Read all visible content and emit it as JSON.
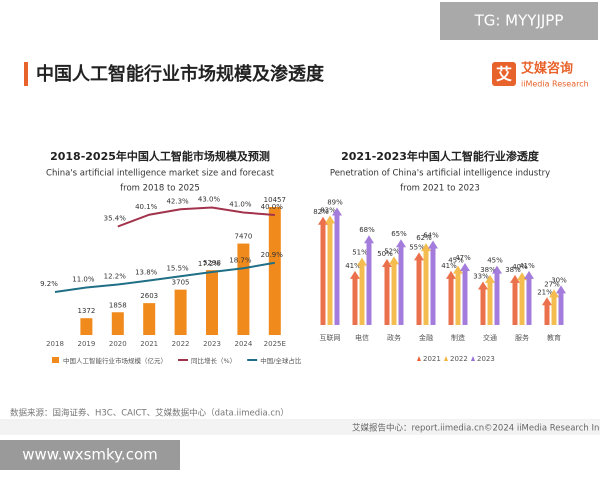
{
  "watermark_top": "TG: MYYJJPP",
  "header": {
    "title": "中国人工智能行业市场规模及渗透度",
    "logo_icon": "艾",
    "logo_name": "艾媒咨询",
    "logo_sub": "iiMedia Research"
  },
  "chart_data": [
    {
      "type": "bar_line",
      "title": "2018-2025年中国人工智能市场规模及预测",
      "subtitle": [
        "China's artificial intelligence market size and forecast",
        "from 2018 to 2025"
      ],
      "categories": [
        "2018",
        "2019",
        "2020",
        "2021",
        "2022",
        "2023",
        "2024",
        "2025E"
      ],
      "series": [
        {
          "name": "中国人工智能行业市场规模（亿元）",
          "type": "bar",
          "color": "#f08a1c",
          "values": [
            null,
            1372,
            1858,
            2603,
            3705,
            5298,
            7470,
            10457
          ]
        },
        {
          "name": "同比增长（%）",
          "type": "line",
          "color": "#a3334c",
          "values": [
            null,
            null,
            35.4,
            40.1,
            42.3,
            43,
            41,
            40
          ],
          "value_labels": [
            null,
            null,
            "35.4%",
            "40.1%",
            "42.3%",
            "43.0%",
            "41.0%",
            "40.0%"
          ]
        },
        {
          "name": "中国/全球占比",
          "type": "line",
          "color": "#1f6f86",
          "values": [
            9.2,
            11,
            12.2,
            13.8,
            15.5,
            17.2,
            18.7,
            20.9
          ],
          "value_labels": [
            "9.2%",
            "11.0%",
            "12.2%",
            "13.8%",
            "15.5%",
            "17.2%",
            "18.7%",
            "20.9%"
          ]
        }
      ]
    },
    {
      "type": "bar",
      "title": "2021-2023年中国人工智能行业渗透度",
      "subtitle": [
        "Penetration of China's artificial intelligence industry",
        "from 2021 to 2023"
      ],
      "categories": [
        "互联网",
        "电信",
        "政务",
        "金融",
        "制造",
        "交通",
        "服务",
        "教育"
      ],
      "series": [
        {
          "name": "2021",
          "color": "#e9623a",
          "values": [
            82,
            41,
            50,
            55,
            41,
            33,
            38,
            21
          ],
          "value_labels": [
            "82%",
            "41%",
            "50%",
            "55%",
            "41%",
            "33%",
            "38%",
            "21%"
          ]
        },
        {
          "name": "2022",
          "color": "#f4b63c",
          "values": [
            83,
            51,
            52,
            62,
            45,
            38,
            40,
            27
          ],
          "value_labels": [
            "83%",
            "51%",
            "52%",
            "62%",
            "45%",
            "38%",
            "40%",
            "27%"
          ]
        },
        {
          "name": "2023",
          "color": "#9a6fd8",
          "values": [
            89,
            68,
            65,
            64,
            47,
            45,
            41,
            30
          ],
          "value_labels": [
            "89%",
            "68%",
            "65%",
            "64%",
            "47%",
            "45%",
            "41%",
            "30%"
          ]
        }
      ]
    }
  ],
  "footer": {
    "source": "数据来源：国海证券、H3C、CAICT、艾媒数据中心（data.iimedia.cn）",
    "report": "艾媒报告中心：report.iimedia.cn",
    "copyright": "©2024 iiMedia Research Inc"
  },
  "watermark_bottom": "www.wxsmky.com"
}
